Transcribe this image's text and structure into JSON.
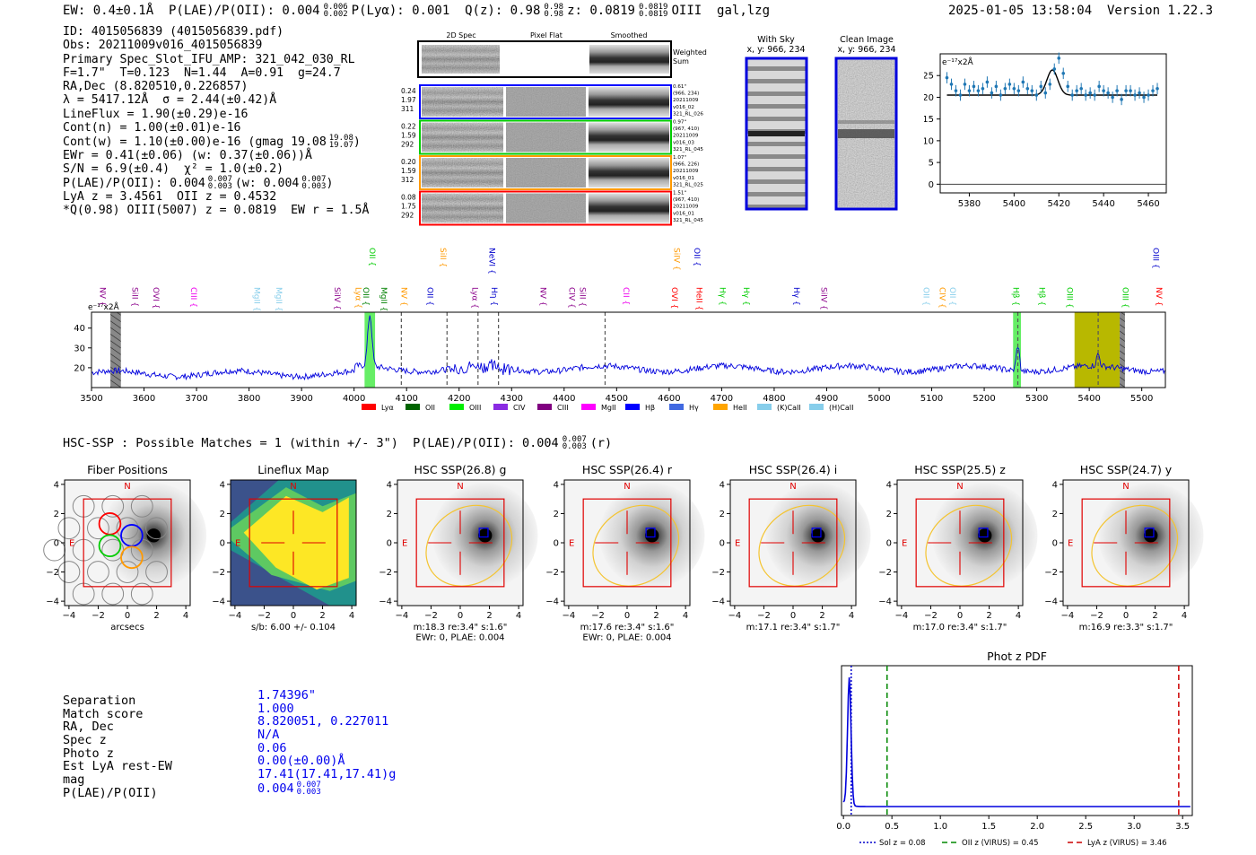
{
  "header": {
    "left": "EW: 0.4±0.1Å  P(LAE)/P(OII): 0.004",
    "plae_sup": "0.006",
    "plae_sub": "0.002",
    "plya": "P(Lyα): 0.001",
    "qz": "Q(z): 0.98",
    "qz_sup": "0.98",
    "qz_sub": "0.98",
    "z": "z: 0.0819",
    "z_sup": "0.0819",
    "z_sub": "0.0819",
    "z_tail": "OIII  gal,lzg",
    "right": "2025-01-05 13:58:04  Version 1.22.3"
  },
  "info": [
    "ID: 4015056839 (4015056839.pdf)",
    "Obs: 20211009v016_4015056839",
    "Primary Spec_Slot_IFU_AMP: 321_042_030_RL",
    "F=1.7\"  T=0.123  N=1.44  A=0.91  g=24.7",
    "RA,Dec (8.820510,0.226857)",
    "λ = 5417.12Å  σ = 2.44(±0.42)Å",
    "LineFlux = 1.90(±0.29)e-16",
    "Cont(n) = 1.00(±0.01)e-16",
    "Cont(w) = 1.10(±0.00)e-16 (gmag 19.08",
    "EWr = 0.41(±0.06) (w: 0.37(±0.06))Å",
    "S/N = 6.9(±0.4)  χ² = 1.0(±0.2)",
    "P(LAE)/P(OII): 0.004",
    "LyA z = 3.4561  OII z = 0.4532",
    "*Q(0.98) OIII(5007) z = 0.0819  EW r = 1.5Å"
  ],
  "info_extra": {
    "gmag_sup": "19.08",
    "gmag_sub": "19.07",
    "plae_sup": "0.007",
    "plae_sub": "0.003",
    "plae_w": "(w: 0.004",
    "plae_w_sup": "0.007",
    "plae_w_sub": "0.003"
  },
  "cutouts": {
    "col_titles": [
      "2D Spec",
      "Pixel Flat",
      "Smoothed"
    ],
    "weighted_sum": [
      "Weighted",
      "Sum"
    ],
    "rows": [
      {
        "left": [
          "0.24",
          "1.97",
          "311"
        ],
        "right": [
          "0.61\"",
          "(966, 234)",
          "20211009",
          "v016_02",
          "321_RL_026"
        ],
        "color": "#0000ff"
      },
      {
        "left": [
          "0.22",
          "1.59",
          "292"
        ],
        "right": [
          "0.97\"",
          "(967, 410)",
          "20211009",
          "v016_03",
          "321_RL_045"
        ],
        "color": "#00cc00"
      },
      {
        "left": [
          "0.20",
          "1.59",
          "312"
        ],
        "right": [
          "1.07\"",
          "(966, 226)",
          "20211009",
          "v016_01",
          "321_RL_025"
        ],
        "color": "#ff9900"
      },
      {
        "left": [
          "0.08",
          "1.75",
          "292"
        ],
        "right": [
          "1.51\"",
          "(967, 410)",
          "20211009",
          "v016_01",
          "321_RL_045"
        ],
        "color": "#ff0000"
      }
    ],
    "with_sky": [
      "With Sky",
      "x, y: 966, 234"
    ],
    "clean_image": [
      "Clean Image",
      "x, y: 966, 234"
    ]
  },
  "line_legend": [
    "Lyα",
    "OII",
    "OIII",
    "CIV",
    "CIII",
    "MgII",
    "Hβ",
    "Hγ",
    "HeII",
    "(K)CaII",
    "(H)CaII"
  ],
  "hsc": {
    "title": "HSC-SSP : Possible Matches = 1 (within +/- 3\")  P(LAE)/P(OII): 0.004",
    "title_sup": "0.007",
    "title_sub": "0.003",
    "title_tail": "(r)",
    "panels": [
      {
        "title": "Fiber Positions",
        "caption": [
          "arcsecs"
        ]
      },
      {
        "title": "Lineflux Map",
        "caption": [
          "s/b: 6.00 +/- 0.104"
        ]
      },
      {
        "title": "HSC SSP(26.8) g",
        "caption": [
          "m:18.3   re:3.4\"   s:1.6\"",
          "EWr: 0, PLAE: 0.004"
        ]
      },
      {
        "title": "HSC SSP(26.4) r",
        "caption": [
          "m:17.6   re:3.4\"   s:1.6\"",
          "EWr: 0, PLAE: 0.004"
        ]
      },
      {
        "title": "HSC SSP(26.4) i",
        "caption": [
          "m:17.1   re:3.4\"   s:1.7\""
        ]
      },
      {
        "title": "HSC SSP(25.5) z",
        "caption": [
          "m:17.0   re:3.4\"   s:1.7\""
        ]
      },
      {
        "title": "HSC SSP(24.7) y",
        "caption": [
          "m:16.9   re:3.3\"   s:1.7\""
        ]
      }
    ],
    "compass_n": "N",
    "compass_e": "E"
  },
  "match": {
    "labels": [
      "Separation",
      "Match score",
      "RA, Dec",
      "Spec z",
      "Photo z",
      "Est LyA rest-EW",
      "mag",
      "P(LAE)/P(OII)"
    ],
    "values": [
      "1.74396\"",
      "1.000",
      "8.820051, 0.227011",
      "N/A",
      "0.06",
      "0.00(±0.00)Å",
      "17.41(17.41,17.41)g",
      "0.004"
    ],
    "plae_sup": "0.007",
    "plae_sub": "0.003"
  },
  "chart_data": [
    {
      "type": "line",
      "name": "zoom-spectrum",
      "ylabel": "e⁻¹⁷x2Å",
      "xlim": [
        5367,
        5468
      ],
      "ylim": [
        -2,
        30
      ],
      "xticks": [
        5380,
        5400,
        5420,
        5440,
        5460
      ],
      "yticks": [
        0,
        5,
        10,
        15,
        20,
        25
      ],
      "data_x": [
        5370,
        5372,
        5374,
        5376,
        5378,
        5380,
        5382,
        5384,
        5386,
        5388,
        5390,
        5392,
        5394,
        5396,
        5398,
        5400,
        5402,
        5404,
        5406,
        5408,
        5410,
        5412,
        5414,
        5416,
        5418,
        5420,
        5422,
        5424,
        5426,
        5428,
        5430,
        5432,
        5434,
        5436,
        5438,
        5440,
        5442,
        5444,
        5446,
        5448,
        5450,
        5452,
        5454,
        5456,
        5458,
        5460,
        5462,
        5464
      ],
      "data_y": [
        24.5,
        23,
        21.5,
        20.5,
        23,
        21.5,
        22.5,
        21.5,
        22,
        23.5,
        21,
        22.5,
        20.5,
        22,
        23,
        22,
        21.5,
        23.5,
        22,
        21.5,
        20.5,
        22.5,
        21,
        23,
        26.5,
        29,
        25.5,
        22.5,
        20.5,
        21.5,
        22,
        20.5,
        21,
        20.5,
        22.5,
        21.5,
        21,
        20,
        21.5,
        19.5,
        21.5,
        21.5,
        20.5,
        21,
        20,
        20.5,
        21.5,
        22
      ],
      "fit": {
        "baseline": 20.5,
        "amplitude": 5.8,
        "center": 5417.12,
        "sigma": 2.44
      }
    },
    {
      "type": "line",
      "name": "full-spectrum",
      "ylabel": "e⁻¹⁷x2Å",
      "xlim": [
        3500,
        5545
      ],
      "ylim": [
        10,
        48
      ],
      "xticks": [
        3500,
        3600,
        3700,
        3800,
        3900,
        4000,
        4100,
        4200,
        4300,
        4400,
        4500,
        4600,
        4700,
        4800,
        4900,
        5000,
        5100,
        5200,
        5300,
        5400,
        5500
      ],
      "yticks": [
        20,
        30,
        40
      ],
      "line_labels_row1": [
        {
          "label": "NV",
          "x": 3516,
          "color": "#8b008b"
        },
        {
          "label": "SiII",
          "x": 3578,
          "color": "#8b008b"
        },
        {
          "label": "OVI",
          "x": 3618,
          "color": "#8b008b"
        },
        {
          "label": "CIII",
          "x": 3690,
          "color": "#ee00ee"
        },
        {
          "label": "MgII",
          "x": 3810,
          "color": "#87ceeb"
        },
        {
          "label": "MgII",
          "x": 3852,
          "color": "#87ceeb"
        },
        {
          "label": "SiIV",
          "x": 3963,
          "color": "#8b008b"
        },
        {
          "label": "Lyα",
          "x": 4003,
          "color": "#ff9900"
        },
        {
          "label": "OII",
          "x": 4018,
          "color": "#008000"
        },
        {
          "label": "MgII",
          "x": 4052,
          "color": "#008000"
        },
        {
          "label": "NV",
          "x": 4090,
          "color": "#ff9900"
        },
        {
          "label": "OII",
          "x": 4140,
          "color": "#0000cc"
        },
        {
          "label": "Lyα",
          "x": 4225,
          "color": "#8b008b"
        },
        {
          "label": "Hη",
          "x": 4262,
          "color": "#0000cc"
        },
        {
          "label": "NV",
          "x": 4355,
          "color": "#8b008b"
        },
        {
          "label": "CIV",
          "x": 4410,
          "color": "#8b008b"
        },
        {
          "label": "SiII",
          "x": 4430,
          "color": "#8b008b"
        },
        {
          "label": "CII",
          "x": 4513,
          "color": "#ee00ee"
        },
        {
          "label": "OVI",
          "x": 4605,
          "color": "#ff0000"
        },
        {
          "label": "HeII",
          "x": 4652,
          "color": "#ff0000"
        },
        {
          "label": "Hγ",
          "x": 4697,
          "color": "#00cc00"
        },
        {
          "label": "Hγ",
          "x": 4742,
          "color": "#00cc00"
        },
        {
          "label": "Hγ",
          "x": 4838,
          "color": "#0000cc"
        },
        {
          "label": "SiIV",
          "x": 4890,
          "color": "#8b008b"
        },
        {
          "label": "OII",
          "x": 5085,
          "color": "#87ceeb"
        },
        {
          "label": "CIV",
          "x": 5115,
          "color": "#ff9900"
        },
        {
          "label": "OII",
          "x": 5135,
          "color": "#87ceeb"
        },
        {
          "label": "Hβ",
          "x": 5255,
          "color": "#00cc00"
        },
        {
          "label": "Hβ",
          "x": 5305,
          "color": "#00cc00"
        },
        {
          "label": "OIII",
          "x": 5358,
          "color": "#00cc00"
        },
        {
          "label": "OIII",
          "x": 5464,
          "color": "#00cc00"
        },
        {
          "label": "NV",
          "x": 5528,
          "color": "#ff0000"
        }
      ],
      "line_labels_row2": [
        {
          "label": "OII",
          "x": 4030,
          "color": "#00cc00"
        },
        {
          "label": "SiII",
          "x": 4165,
          "color": "#ff9900"
        },
        {
          "label": "NeVI",
          "x": 4258,
          "color": "#0000cc"
        },
        {
          "label": "SiIV",
          "x": 4610,
          "color": "#ff9900"
        },
        {
          "label": "OII",
          "x": 4648,
          "color": "#0000cc"
        },
        {
          "label": "OIII",
          "x": 5522,
          "color": "#0000cc"
        }
      ],
      "dashed_lines": [
        4090,
        4177,
        4236,
        4275,
        4478,
        5264,
        5417
      ],
      "highlight_bands": [
        {
          "x0": 4020,
          "x1": 4040,
          "color": "#66ee66"
        },
        {
          "x0": 5255,
          "x1": 5270,
          "color": "#66ee66"
        },
        {
          "x0": 5372,
          "x1": 5458,
          "color": "#b8b800"
        }
      ],
      "hatched_bands": [
        {
          "x0": 3536,
          "x1": 3556
        },
        {
          "x0": 5458,
          "x1": 5468
        }
      ],
      "legend": [
        "Lyα",
        "OII",
        "OIII",
        "CIV",
        "CIII",
        "MgII",
        "Hβ",
        "Hγ",
        "HeII",
        "(K)CaII",
        "(H)CaII"
      ]
    },
    {
      "type": "line",
      "name": "photo-z-pdf",
      "title": "Phot z PDF",
      "xlim": [
        -0.02,
        3.6
      ],
      "xticks": [
        0.0,
        0.5,
        1.0,
        1.5,
        2.0,
        2.5,
        3.0,
        3.5
      ],
      "peak": 0.06,
      "vlines": [
        {
          "label": "Sol z = 0.08",
          "x": 0.08,
          "color": "#0000cc",
          "style": "dotted"
        },
        {
          "label": "OII z (VIRUS) = 0.45",
          "x": 0.45,
          "color": "#008800",
          "style": "dashed"
        },
        {
          "label": "LyA z (VIRUS) = 3.46",
          "x": 3.46,
          "color": "#cc0000",
          "style": "dashed"
        }
      ]
    }
  ]
}
